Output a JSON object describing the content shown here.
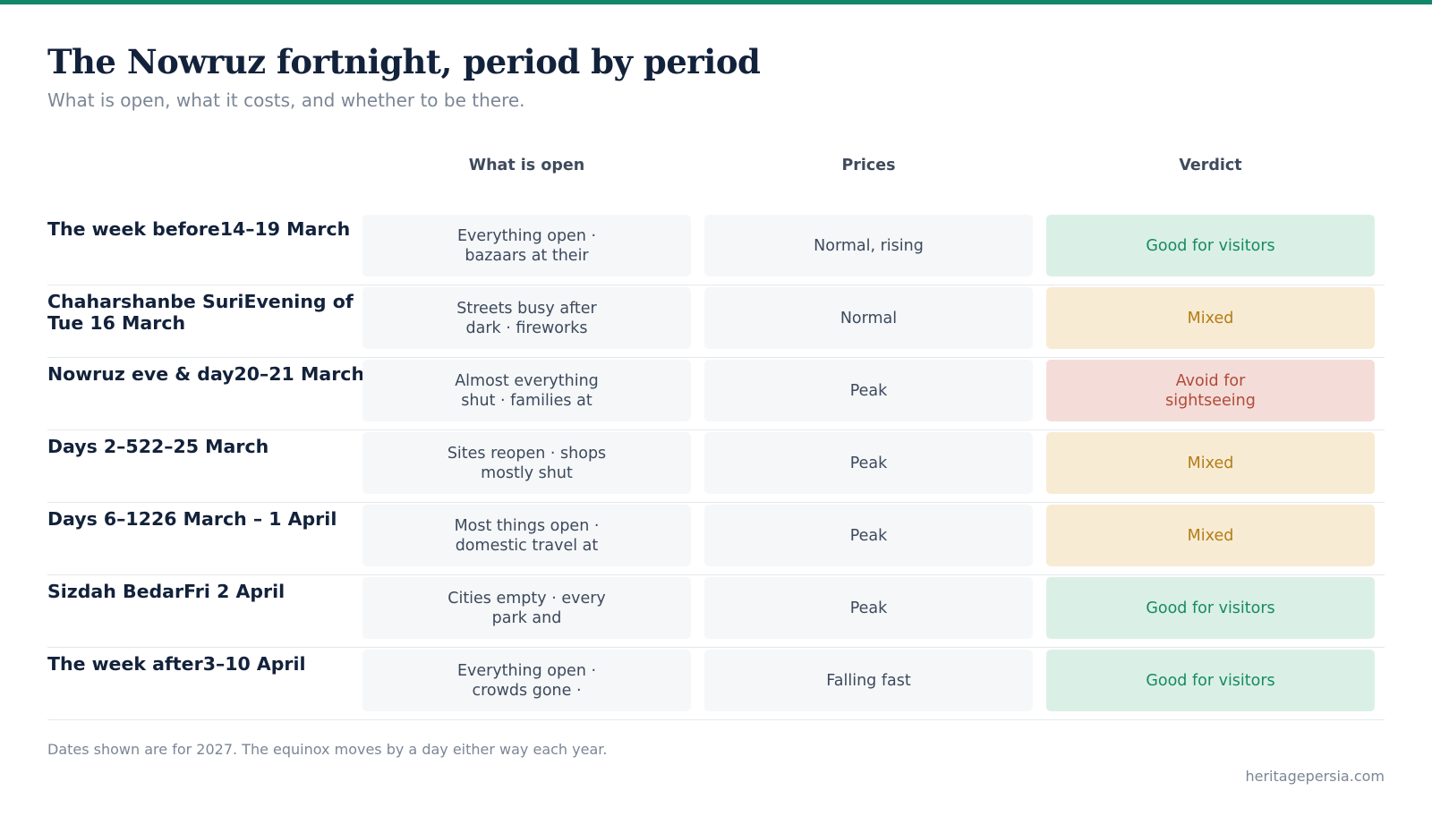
{
  "accent_color": "#13876a",
  "title": "The Nowruz fortnight, period by period",
  "subtitle": "What is open, what it costs, and whether to be there.",
  "columns": {
    "open": "What is open",
    "prices": "Prices",
    "verdict": "Verdict"
  },
  "verdict_colors": {
    "good": "#178a63",
    "mixed": "#b27d14",
    "avoid": "#b14a39"
  },
  "rows": [
    {
      "label": "The week before14–19 March",
      "open": "Everything open · bazaars at their",
      "prices": "Normal, rising",
      "verdict": "Good for visitors",
      "verdict_type": "good"
    },
    {
      "label": "Chaharshanbe SuriEvening of Tue 16 March",
      "open": "Streets busy after dark · fireworks",
      "prices": "Normal",
      "verdict": "Mixed",
      "verdict_type": "mixed"
    },
    {
      "label": "Nowruz eve & day20–21 March",
      "open": "Almost everything shut · families at",
      "prices": "Peak",
      "verdict": "Avoid for sightseeing",
      "verdict_type": "avoid"
    },
    {
      "label": "Days 2–522–25 March",
      "open": "Sites reopen · shops mostly shut",
      "prices": "Peak",
      "verdict": "Mixed",
      "verdict_type": "mixed"
    },
    {
      "label": "Days 6–1226 March – 1 April",
      "open": "Most things open · domestic travel at",
      "prices": "Peak",
      "verdict": "Mixed",
      "verdict_type": "mixed"
    },
    {
      "label": "Sizdah BedarFri 2 April",
      "open": "Cities empty · every park and",
      "prices": "Peak",
      "verdict": "Good for visitors",
      "verdict_type": "good"
    },
    {
      "label": "The week after3–10 April",
      "open": "Everything open · crowds gone ·",
      "prices": "Falling fast",
      "verdict": "Good for visitors",
      "verdict_type": "good"
    }
  ],
  "footnote": "Dates shown are for 2027. The equinox moves by a day either way each year.",
  "source": "heritagepersia.com"
}
